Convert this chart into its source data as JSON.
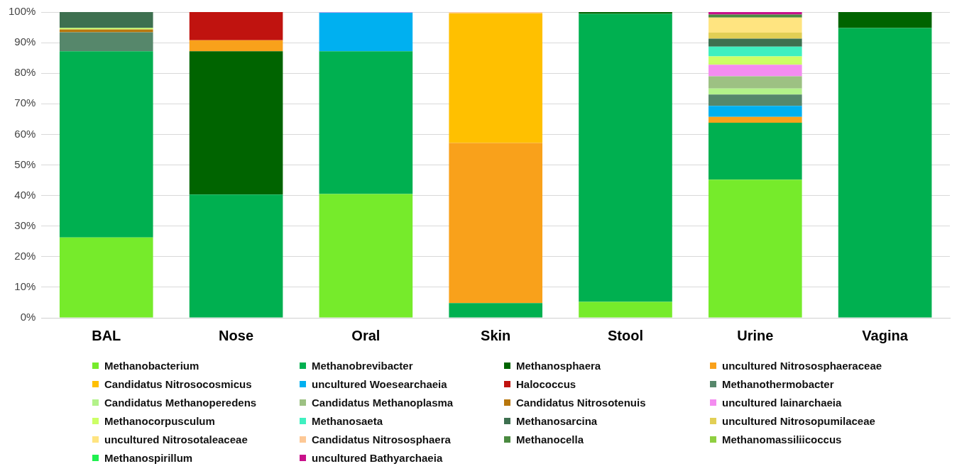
{
  "chart_data": {
    "type": "bar",
    "stacked": true,
    "categories": [
      "BAL",
      "Nose",
      "Oral",
      "Skin",
      "Stool",
      "Urine",
      "Vagina"
    ],
    "ylim": [
      0,
      100
    ],
    "yticks": [
      {
        "value": 0,
        "label": "0%"
      },
      {
        "value": 10,
        "label": "10%"
      },
      {
        "value": 20,
        "label": "20%"
      },
      {
        "value": 30,
        "label": "30%"
      },
      {
        "value": 40,
        "label": "40%"
      },
      {
        "value": 50,
        "label": "50%"
      },
      {
        "value": 60,
        "label": "60%"
      },
      {
        "value": 70,
        "label": "70%"
      },
      {
        "value": 80,
        "label": "80%"
      },
      {
        "value": 90,
        "label": "90%"
      },
      {
        "value": 100,
        "label": "100%"
      }
    ],
    "grid": "y",
    "legend": "bottom",
    "series": [
      {
        "name": "Methanobacterium",
        "color": "#76eb2b",
        "values": [
          26.3,
          0,
          40.5,
          0,
          5.2,
          45.2,
          0
        ]
      },
      {
        "name": "Methanobrevibacter",
        "color": "#00b050",
        "values": [
          60.9,
          40.3,
          46.7,
          4.8,
          94.2,
          18.6,
          94.8
        ]
      },
      {
        "name": "Methanosphaera",
        "color": "#006400",
        "values": [
          0,
          46.9,
          0,
          0,
          0.6,
          0,
          5.2
        ]
      },
      {
        "name": "uncultured Nitrososphaeraceae",
        "color": "#f9a11b",
        "values": [
          0,
          3.6,
          0,
          52.4,
          0,
          1.9,
          0
        ]
      },
      {
        "name": "Candidatus Nitrosocosmicus",
        "color": "#ffc000",
        "values": [
          0,
          0,
          0,
          42.4,
          0,
          0,
          0
        ]
      },
      {
        "name": "uncultured Woesearchaeia",
        "color": "#00b0f0",
        "values": [
          0,
          0,
          12.6,
          0,
          0,
          3.6,
          0
        ]
      },
      {
        "name": "Halococcus",
        "color": "#c0130f",
        "values": [
          0,
          9.2,
          0,
          0,
          0,
          0,
          0
        ]
      },
      {
        "name": "Methanothermobacter",
        "color": "#56876b",
        "values": [
          6.2,
          0,
          0,
          0,
          0,
          3.7,
          0
        ]
      },
      {
        "name": "Candidatus Methanoperedens",
        "color": "#b3f28a",
        "values": [
          0,
          0,
          0,
          0,
          0,
          2.0,
          0
        ]
      },
      {
        "name": "Candidatus Methanoplasma",
        "color": "#9dc183",
        "values": [
          0,
          0,
          0,
          0,
          0,
          4.0,
          0
        ]
      },
      {
        "name": "Candidatus Nitrosotenuis",
        "color": "#b8770d",
        "values": [
          0.9,
          0,
          0,
          0,
          0,
          0,
          0
        ]
      },
      {
        "name": "uncultured lainarchaeia",
        "color": "#f48cf0",
        "values": [
          0,
          0,
          0.2,
          0,
          0,
          3.8,
          0
        ]
      },
      {
        "name": "Methanocorpusculum",
        "color": "#ccff66",
        "values": [
          0.5,
          0,
          0,
          0,
          0,
          2.7,
          0
        ]
      },
      {
        "name": "Methanosaeta",
        "color": "#3ff0c0",
        "values": [
          0,
          0,
          0,
          0,
          0,
          3.2,
          0
        ]
      },
      {
        "name": "Methanosarcina",
        "color": "#3e7050",
        "values": [
          5.2,
          0,
          0,
          0,
          0,
          2.6,
          0
        ]
      },
      {
        "name": "uncultured Nitrosopumilaceae",
        "color": "#e2cf55",
        "values": [
          0,
          0,
          0,
          0,
          0,
          2.0,
          0
        ]
      },
      {
        "name": "uncultured Nitrosotaleaceae",
        "color": "#ffe480",
        "values": [
          0,
          0,
          0,
          0,
          0,
          4.9,
          0
        ]
      },
      {
        "name": "Candidatus Nitrososphaera",
        "color": "#fdc896",
        "values": [
          0,
          0,
          0,
          0.4,
          0,
          0,
          0
        ]
      },
      {
        "name": "Methanocella",
        "color": "#4a8a40",
        "values": [
          0,
          0,
          0,
          0,
          0,
          1.0,
          0
        ]
      },
      {
        "name": "Methanomassiliicoccus",
        "color": "#8fcf40",
        "values": [
          0,
          0,
          0,
          0,
          0,
          0,
          0
        ]
      },
      {
        "name": "Methanospirillum",
        "color": "#20f050",
        "values": [
          0,
          0,
          0,
          0,
          0,
          0,
          0
        ]
      },
      {
        "name": "uncultured Bathyarchaeia",
        "color": "#c8108a",
        "values": [
          0,
          0,
          0,
          0,
          0,
          0.8,
          0
        ]
      }
    ]
  }
}
